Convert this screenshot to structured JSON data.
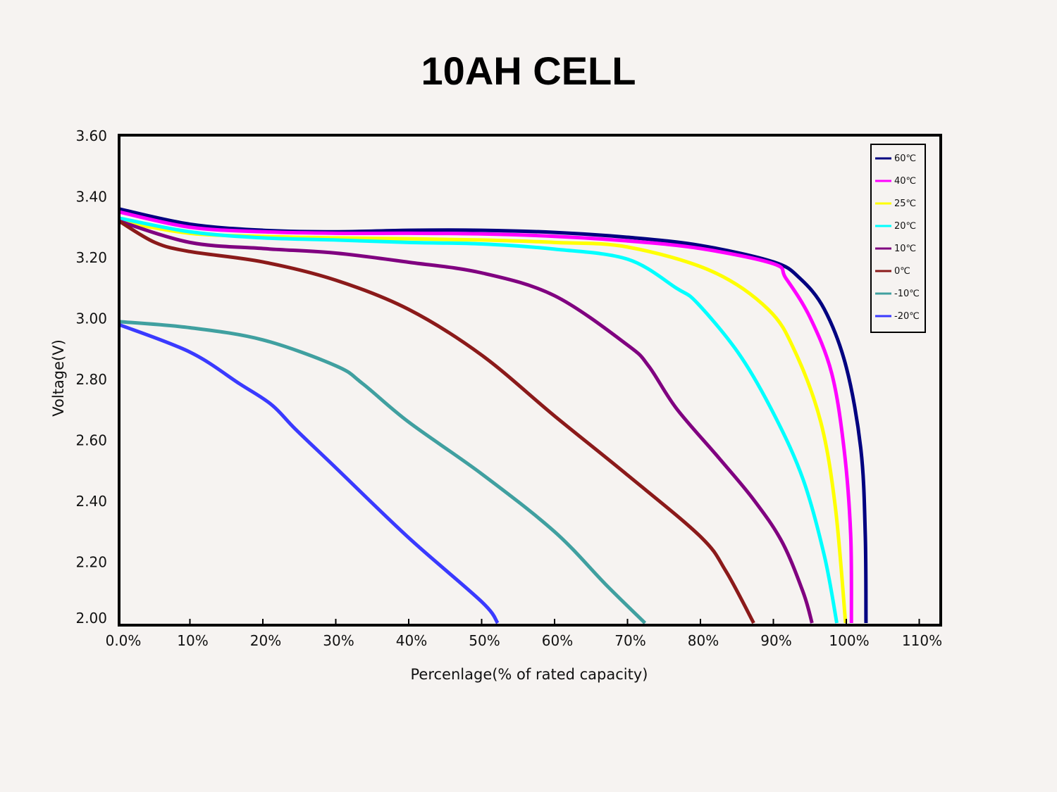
{
  "chart_data": {
    "type": "line",
    "title": "10AH CELL",
    "xlabel": "Percenlage(% of rated capacity)",
    "ylabel": "Voltage(V)",
    "xlim": [
      0,
      113
    ],
    "ylim": [
      2.0,
      3.6
    ],
    "x_ticks": [
      0,
      10,
      20,
      30,
      40,
      50,
      60,
      70,
      80,
      90,
      100,
      110
    ],
    "x_tick_labels": [
      "0.0%",
      "10%",
      "20%",
      "30%",
      "40%",
      "50%",
      "60%",
      "70%",
      "80%",
      "90%",
      "100%",
      "110%"
    ],
    "y_ticks": [
      2.0,
      2.2,
      2.4,
      2.6,
      2.8,
      3.0,
      3.2,
      3.4,
      3.6
    ],
    "y_tick_labels": [
      "2.00",
      "2.20",
      "2.40",
      "2.60",
      "2.80",
      "3.00",
      "3.20",
      "3.40",
      "3.60"
    ],
    "grid": false,
    "legend_position": "top-right",
    "series": [
      {
        "name": "60℃",
        "color": "#000080",
        "x": [
          0.3,
          10,
          20,
          30,
          40,
          50,
          60,
          70,
          80,
          90,
          93.6,
          97,
          100,
          102,
          102.6,
          102.7
        ],
        "y": [
          3.36,
          3.31,
          3.29,
          3.285,
          3.29,
          3.29,
          3.283,
          3.267,
          3.24,
          3.186,
          3.133,
          3.03,
          2.84,
          2.57,
          2.29,
          2.0
        ]
      },
      {
        "name": "40℃",
        "color": "#ff00ff",
        "x": [
          0.3,
          10,
          20,
          30,
          40,
          50,
          60,
          70,
          80,
          90,
          91.7,
          95,
          98,
          99.7,
          100.6,
          100.7
        ],
        "y": [
          3.35,
          3.3,
          3.285,
          3.28,
          3.28,
          3.278,
          3.27,
          3.255,
          3.23,
          3.18,
          3.133,
          3.005,
          2.82,
          2.57,
          2.29,
          2.0
        ]
      },
      {
        "name": "25℃",
        "color": "#ffff00",
        "x": [
          0.3,
          10,
          20,
          30,
          40,
          50,
          60,
          70,
          81.5,
          89.3,
          93,
          96.5,
          98.5,
          99.9
        ],
        "y": [
          3.32,
          3.28,
          3.27,
          3.265,
          3.262,
          3.258,
          3.25,
          3.235,
          3.156,
          3.03,
          2.89,
          2.66,
          2.38,
          2.0
        ]
      },
      {
        "name": "20℃",
        "color": "#00ffff",
        "x": [
          0.3,
          10,
          20,
          30,
          40,
          50,
          60,
          70,
          76.7,
          79.6,
          85.4,
          90.2,
          94.1,
          97,
          98.7
        ],
        "y": [
          3.33,
          3.285,
          3.265,
          3.258,
          3.25,
          3.245,
          3.228,
          3.195,
          3.1,
          3.05,
          2.88,
          2.68,
          2.47,
          2.22,
          2.0
        ]
      },
      {
        "name": "10℃",
        "color": "#800080",
        "x": [
          0.3,
          10,
          20,
          30,
          40,
          50,
          60,
          70,
          72.9,
          76.7,
          82.5,
          87.3,
          91.2,
          94.1,
          95.3
        ],
        "y": [
          3.32,
          3.25,
          3.23,
          3.215,
          3.185,
          3.15,
          3.075,
          2.913,
          2.844,
          2.705,
          2.543,
          2.405,
          2.266,
          2.1,
          2.0
        ]
      },
      {
        "name": "0℃",
        "color": "#8b1a1a",
        "x": [
          0.3,
          5.2,
          10,
          20,
          30,
          40,
          50,
          60,
          70,
          80,
          83.5,
          87.3
        ],
        "y": [
          3.32,
          3.25,
          3.22,
          3.186,
          3.126,
          3.03,
          2.88,
          2.68,
          2.486,
          2.284,
          2.17,
          2.0
        ]
      },
      {
        "name": "-10℃",
        "color": "#40a0a0",
        "x": [
          0.3,
          10,
          20,
          30,
          33.7,
          40,
          50,
          60,
          67,
          72.4
        ],
        "y": [
          2.99,
          2.97,
          2.93,
          2.845,
          2.786,
          2.66,
          2.49,
          2.3,
          2.127,
          2.0
        ]
      },
      {
        "name": "-20℃",
        "color": "#3a3aff",
        "x": [
          0.3,
          10,
          16.8,
          21.2,
          24.5,
          30,
          40,
          50,
          52.2
        ],
        "y": [
          2.98,
          2.89,
          2.786,
          2.717,
          2.636,
          2.51,
          2.28,
          2.07,
          2.0
        ]
      }
    ]
  }
}
